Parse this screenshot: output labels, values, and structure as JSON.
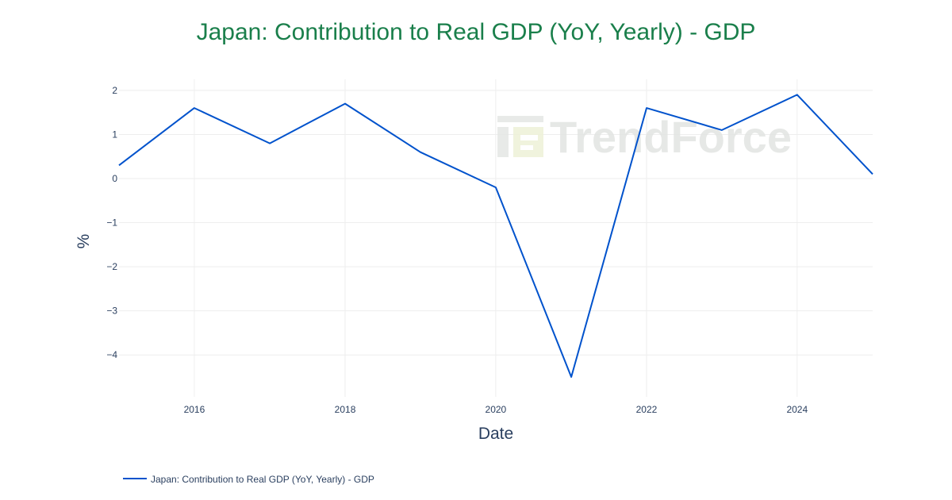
{
  "chart_data": {
    "type": "line",
    "title": "Japan: Contribution to Real GDP (YoY, Yearly) - GDP",
    "xlabel": "Date",
    "ylabel": "%",
    "x": [
      "2015-01-01",
      "2016-01-01",
      "2017-01-01",
      "2018-01-01",
      "2019-01-01",
      "2020-01-01",
      "2021-01-01",
      "2022-01-01",
      "2023-01-01",
      "2024-01-01",
      "2025-01-01"
    ],
    "series": [
      {
        "name": "Japan: Contribution to Real GDP (YoY, Yearly) - GDP",
        "values": [
          0.3,
          1.6,
          0.8,
          1.7,
          0.6,
          -0.2,
          -4.5,
          1.6,
          1.1,
          1.9,
          0.1
        ],
        "color": "#0052cc"
      }
    ],
    "x_ticks": [
      {
        "label": "2016",
        "value": "2016-01-01"
      },
      {
        "label": "2018",
        "value": "2018-01-01"
      },
      {
        "label": "2020",
        "value": "2020-01-01"
      },
      {
        "label": "2022",
        "value": "2022-01-01"
      },
      {
        "label": "2024",
        "value": "2024-01-01"
      }
    ],
    "y_ticks": [
      {
        "label": "2",
        "value": 2
      },
      {
        "label": "1",
        "value": 1
      },
      {
        "label": "0",
        "value": 0
      },
      {
        "label": "−1",
        "value": -1
      },
      {
        "label": "−2",
        "value": -2
      },
      {
        "label": "−3",
        "value": -3
      },
      {
        "label": "−4",
        "value": -4
      }
    ],
    "xlim": [
      "2015-01-01",
      "2025-01-01"
    ],
    "ylim": [
      -4.95,
      2.25
    ],
    "grid": true,
    "legend_position": "bottom-left",
    "colors": {
      "title": "#1a7f4b",
      "text": "#2a3f5f",
      "grid": "#eeeeee",
      "line": "#0052cc"
    }
  },
  "watermark": {
    "text": "TrendForce"
  }
}
